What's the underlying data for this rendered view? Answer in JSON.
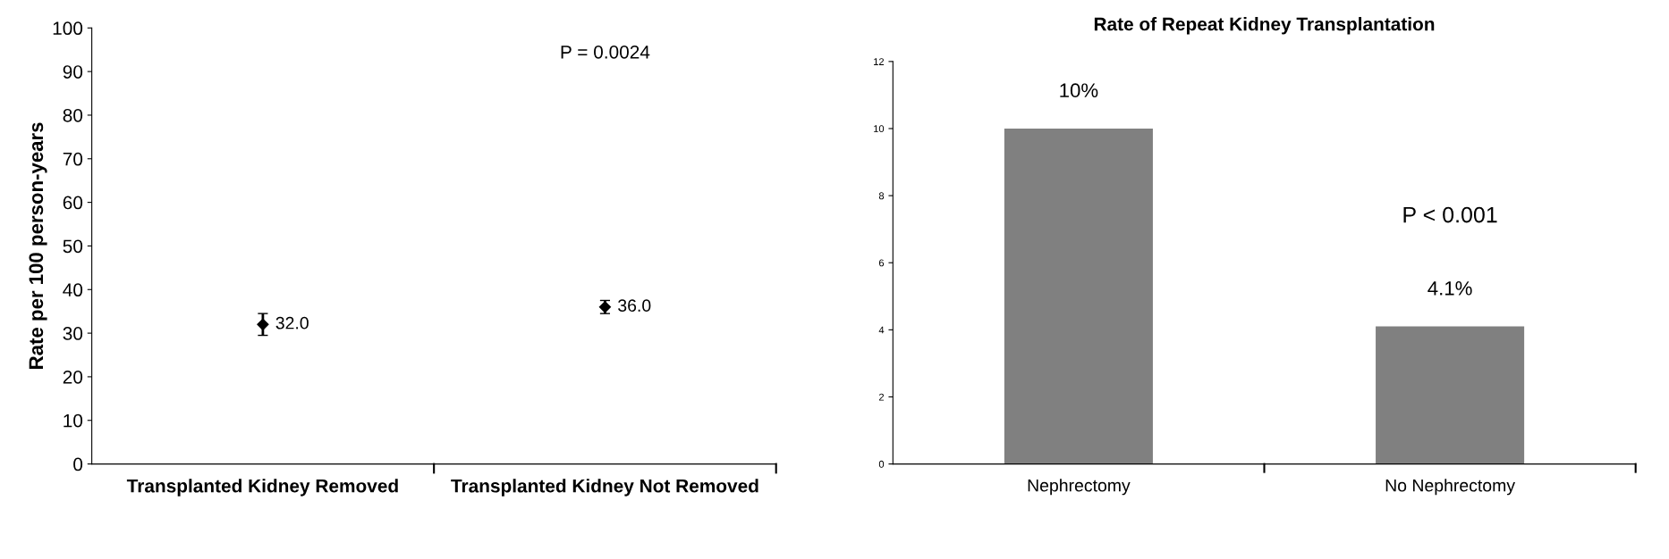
{
  "chart_data": [
    {
      "type": "scatter",
      "ylabel": "Rate per 100 person-years",
      "categories": [
        "Transplanted Kidney Removed",
        "Transplanted Kidney Not Removed"
      ],
      "series": [
        {
          "color": "#000000",
          "values": [
            32.0,
            36.0
          ],
          "errors": [
            2.5,
            1.5
          ],
          "value_labels": [
            "32.0",
            "36.0"
          ]
        }
      ],
      "ylim": [
        0,
        100
      ],
      "yticks": [
        0,
        10,
        20,
        30,
        40,
        50,
        60,
        70,
        80,
        90,
        100
      ],
      "marker": "diamond",
      "grid": false,
      "legend": false,
      "annotations": [
        "P = 0.0024"
      ]
    },
    {
      "type": "bar",
      "title": "Rate of Repeat Kidney Transplantation",
      "categories": [
        "Nephrectomy",
        "No Nephrectomy"
      ],
      "series": [
        {
          "color": "#808080",
          "values": [
            10,
            4.1
          ],
          "value_labels": [
            "10%",
            "4.1%"
          ]
        }
      ],
      "ylim": [
        0,
        12
      ],
      "yticks": [
        0,
        2,
        4,
        6,
        8,
        10,
        12
      ],
      "grid": false,
      "legend": false,
      "annotations": [
        "P < 0.001"
      ]
    }
  ]
}
